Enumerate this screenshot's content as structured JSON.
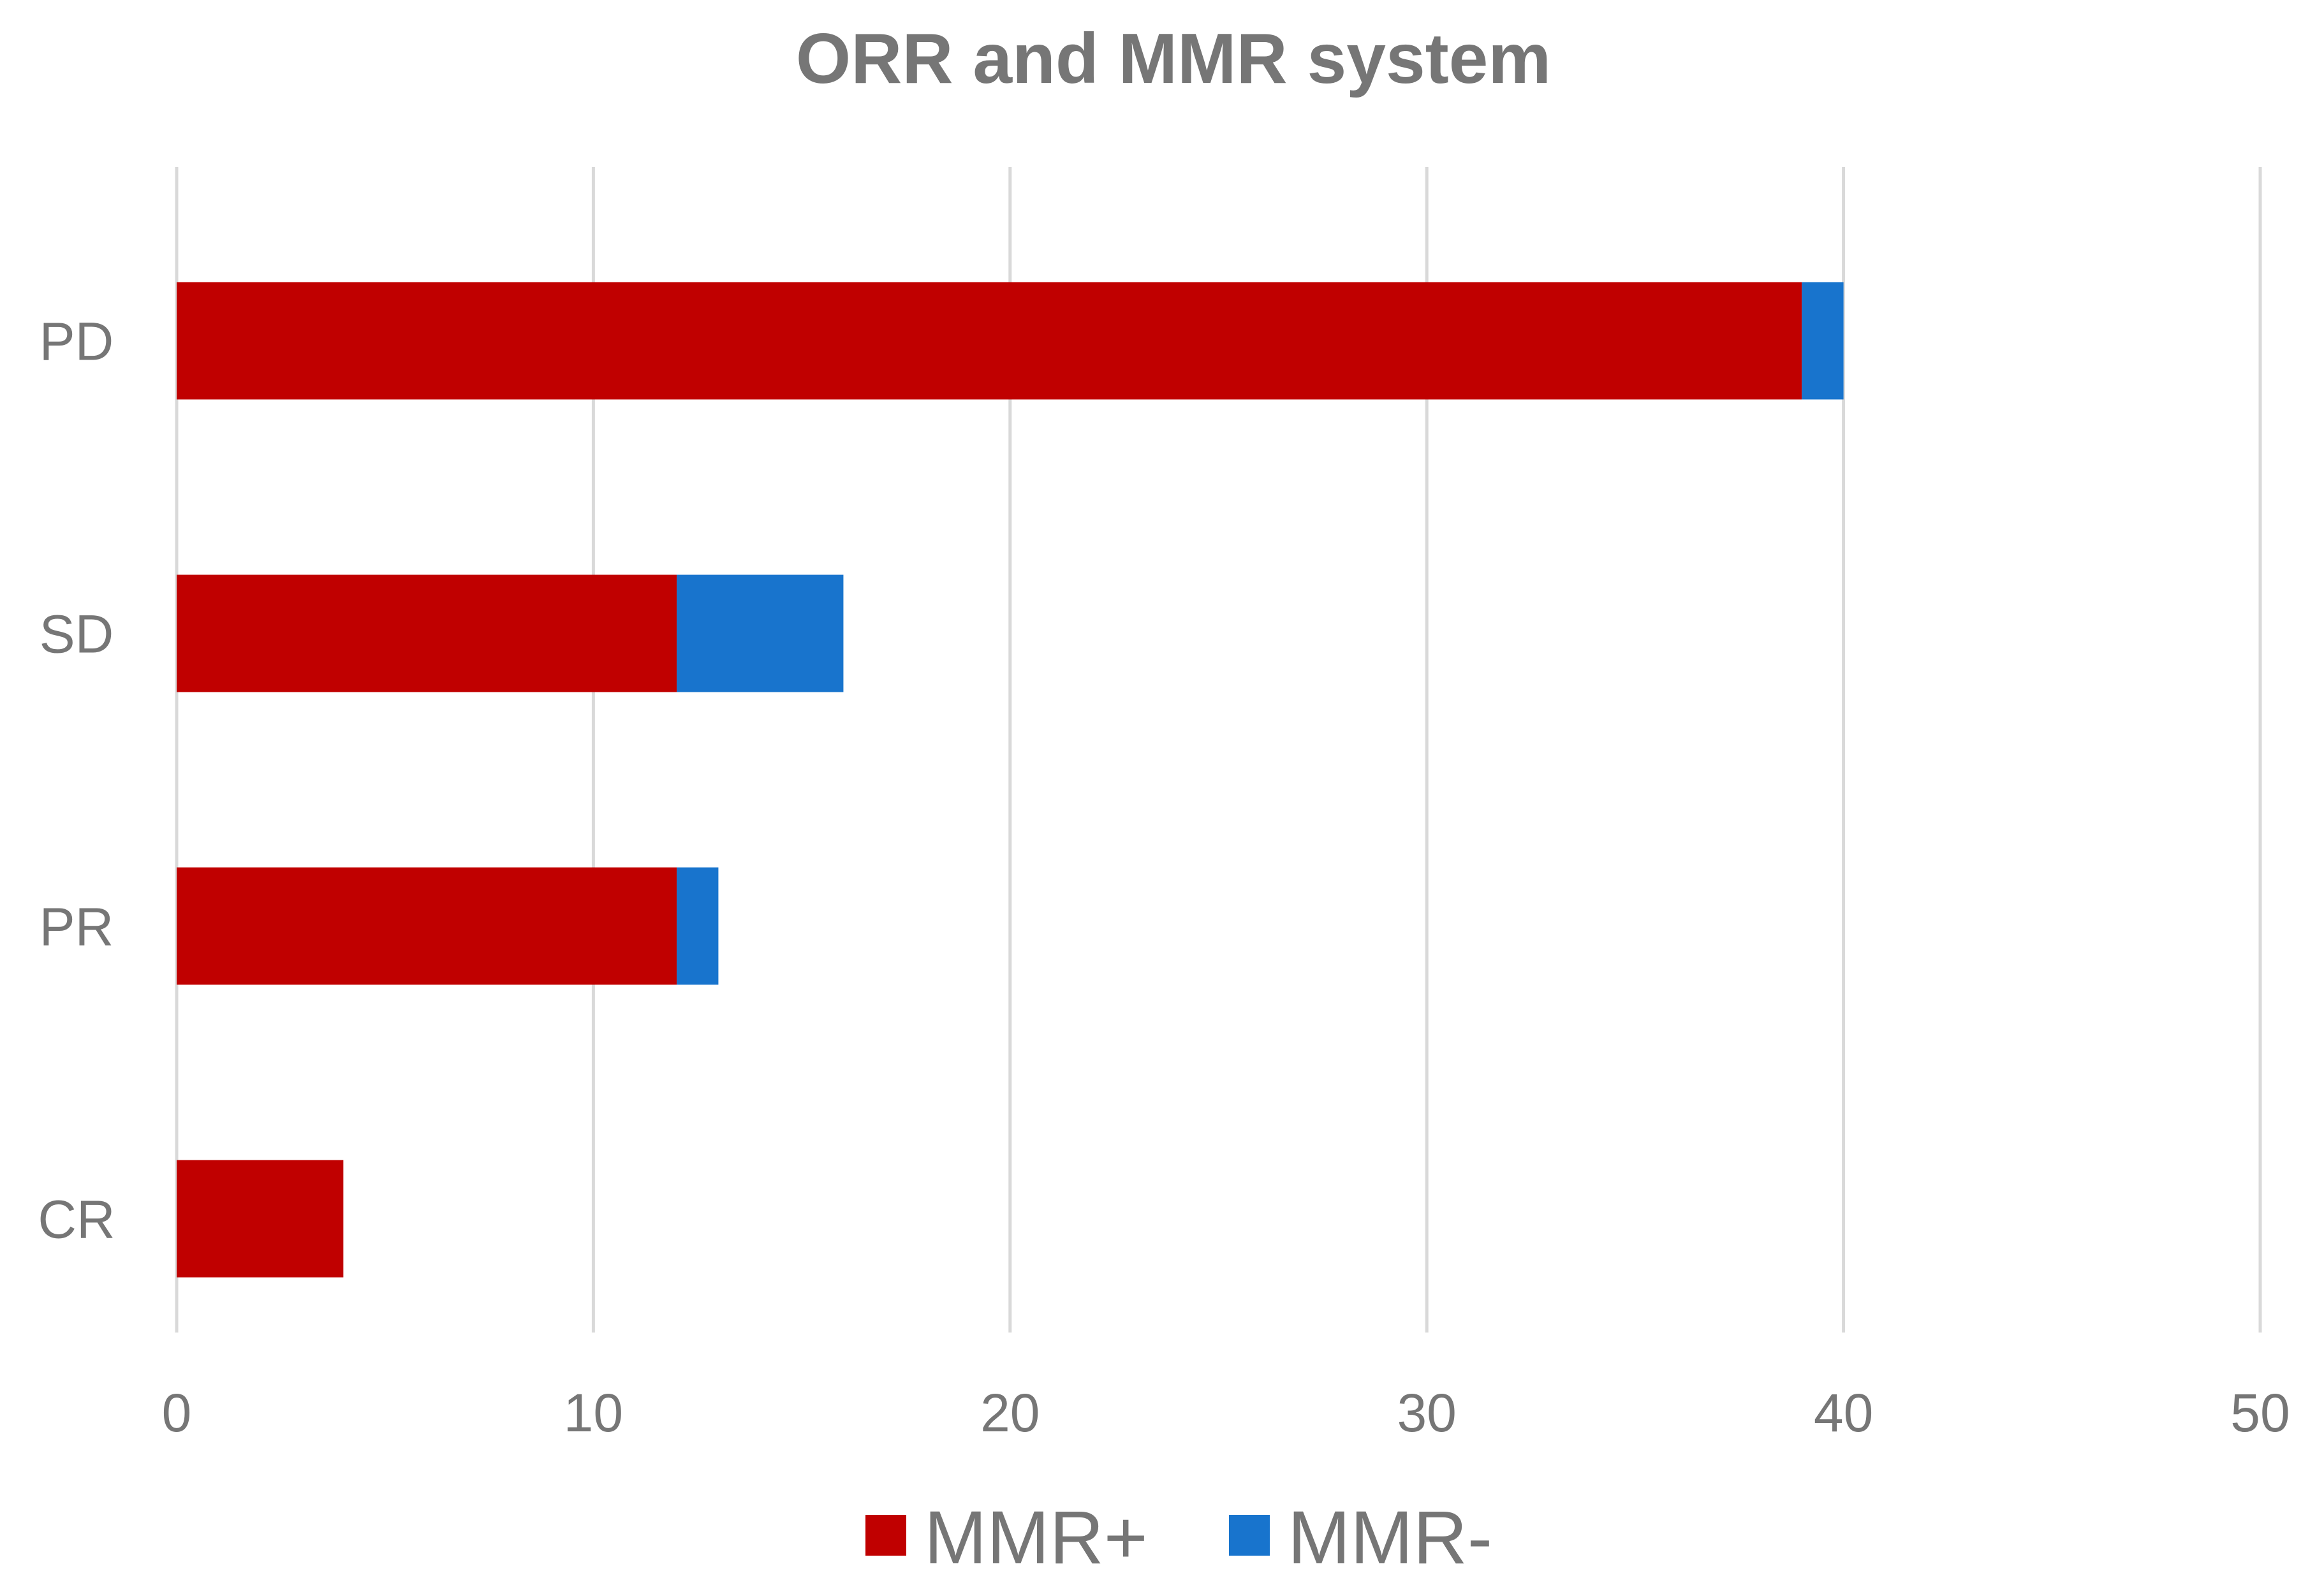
{
  "chart_data": {
    "type": "bar",
    "orientation": "horizontal",
    "stacked": true,
    "title": "ORR and MMR system",
    "xlabel": "",
    "ylabel": "",
    "categories": [
      "PD",
      "SD",
      "PR",
      "CR"
    ],
    "series": [
      {
        "name": "MMR+",
        "color": "#C00000",
        "values": [
          39,
          12,
          12,
          4
        ]
      },
      {
        "name": "MMR-",
        "color": "#1874CD",
        "values": [
          1,
          4,
          1,
          0
        ]
      }
    ],
    "xlim": [
      0,
      50
    ],
    "x_ticks": [
      "0",
      "10",
      "20",
      "30",
      "40",
      "50"
    ],
    "grid": "vertical",
    "legend_position": "bottom",
    "colors": {
      "text": "#767676",
      "grid": "#D9D9D9"
    }
  }
}
